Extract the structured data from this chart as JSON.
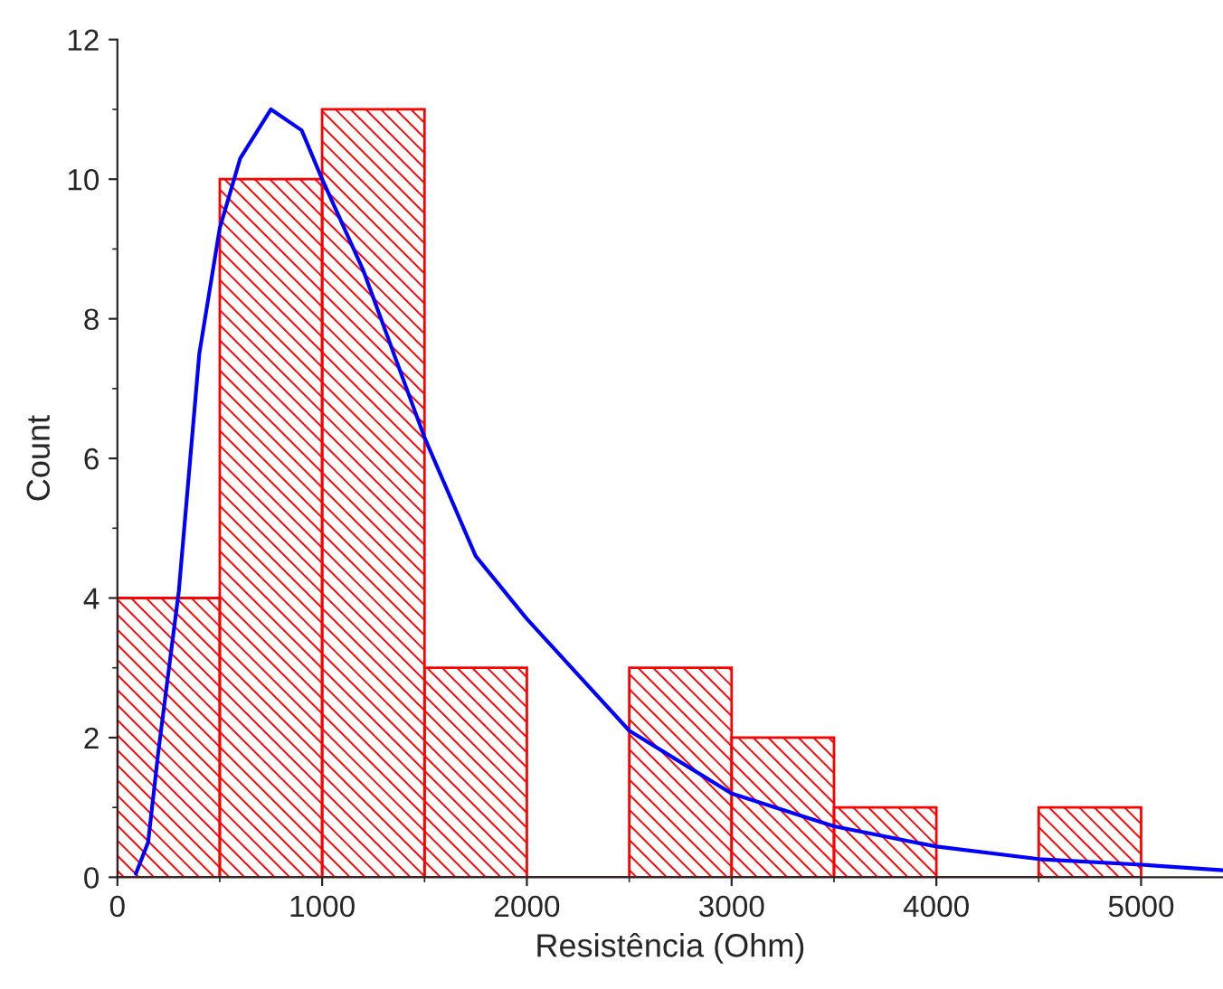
{
  "chart_data": {
    "type": "histogram",
    "xlabel": "Resistência (Ohm)",
    "ylabel": "Count",
    "bins": [
      0,
      500,
      1000,
      1500,
      2000,
      2500,
      3000,
      3500,
      4000,
      4500,
      5000
    ],
    "values": [
      4,
      10,
      11,
      3,
      0,
      3,
      2,
      1,
      0,
      1
    ],
    "color": "#ff0000",
    "series": [
      {
        "type": "line",
        "color": "#0000ff",
        "x": [
          90,
          150,
          200,
          300,
          400,
          500,
          600,
          750,
          900,
          1000,
          1200,
          1400,
          1500,
          1750,
          2000,
          2500,
          3000,
          3500,
          4000,
          4500,
          5000,
          5400
        ],
        "values": [
          0.05,
          0.5,
          1.8,
          4.1,
          7.5,
          9.3,
          10.3,
          11.0,
          10.7,
          10.0,
          8.7,
          7.1,
          6.3,
          4.6,
          3.7,
          2.1,
          1.2,
          0.73,
          0.44,
          0.26,
          0.18,
          0.1
        ]
      }
    ],
    "xlim": [
      0,
      5400
    ],
    "xticks": [
      0,
      1000,
      2000,
      3000,
      4000,
      5000
    ],
    "ylim": [
      0,
      12
    ],
    "yticks": [
      0,
      2,
      4,
      6,
      8,
      10,
      12
    ],
    "grid": false,
    "legend": false
  }
}
